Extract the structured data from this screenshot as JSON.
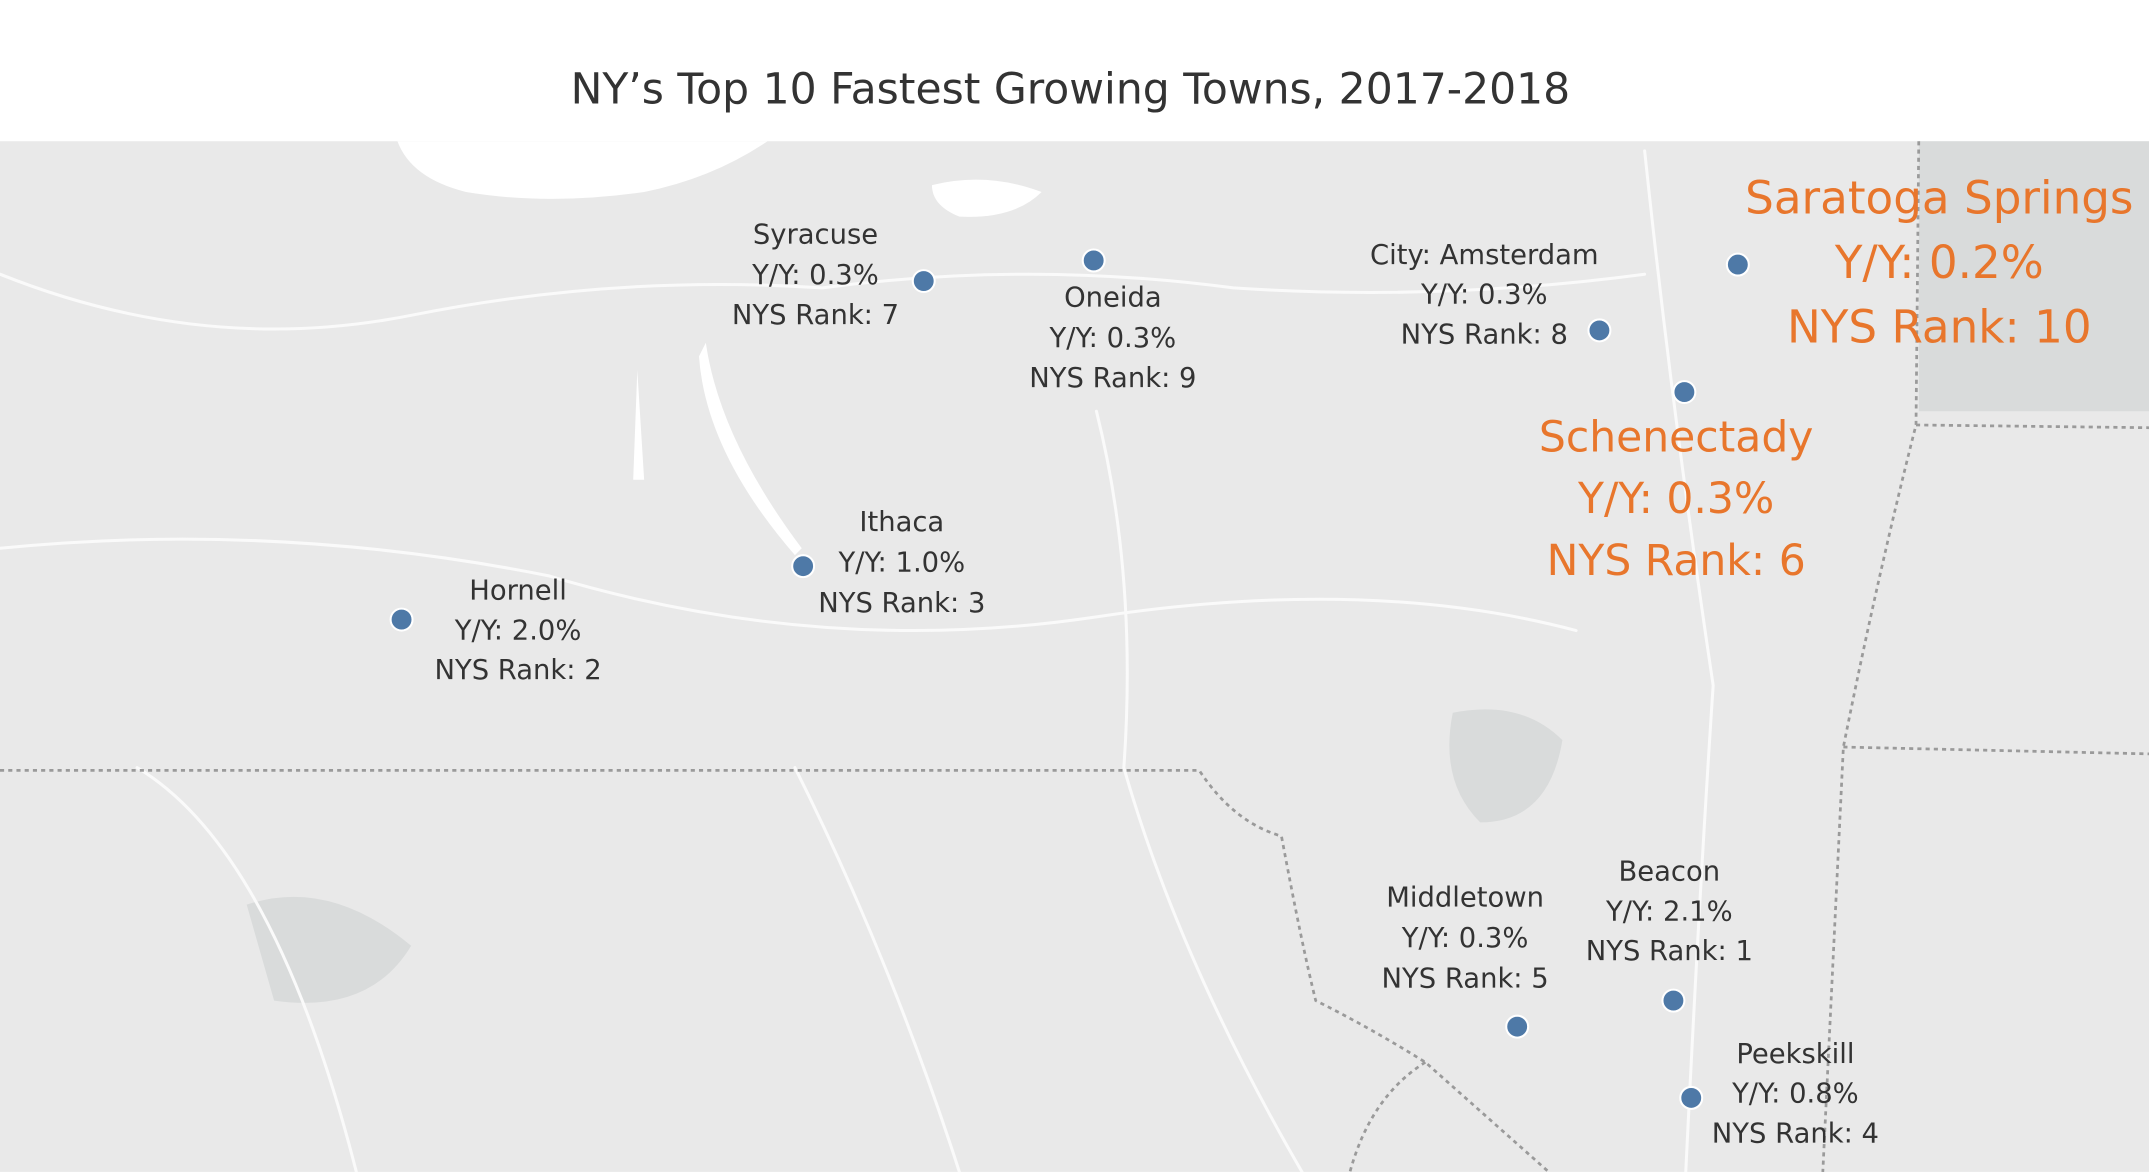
{
  "title": "NY’s Top 10 Fastest Growing Towns, 2017-2018",
  "marker_color": "#4e79a7",
  "towns": [
    {
      "name": "Syracuse",
      "growth": "Y/Y: 0.3%",
      "rank": "NYS Rank: 7",
      "label_color": "#333333"
    },
    {
      "name": "Oneida",
      "growth": "Y/Y: 0.3%",
      "rank": "NYS Rank: 9",
      "label_color": "#333333"
    },
    {
      "name": "City: Amsterdam",
      "growth": "Y/Y: 0.3%",
      "rank": "NYS Rank: 8",
      "label_color": "#333333"
    },
    {
      "name": "Saratoga Springs",
      "growth": "Y/Y: 0.2%",
      "rank": "NYS Rank: 10",
      "label_color": "#e8762c"
    },
    {
      "name": "Schenectady",
      "growth": "Y/Y: 0.3%",
      "rank": "NYS Rank: 6",
      "label_color": "#e8762c"
    },
    {
      "name": "Ithaca",
      "growth": "Y/Y: 1.0%",
      "rank": "NYS Rank: 3",
      "label_color": "#333333"
    },
    {
      "name": "Hornell",
      "growth": "Y/Y: 2.0%",
      "rank": "NYS Rank: 2",
      "label_color": "#333333"
    },
    {
      "name": "Middletown",
      "growth": "Y/Y: 0.3%",
      "rank": "NYS Rank: 5",
      "label_color": "#333333"
    },
    {
      "name": "Beacon",
      "growth": "Y/Y: 2.1%",
      "rank": "NYS Rank: 1",
      "label_color": "#333333"
    },
    {
      "name": "Peekskill",
      "growth": "Y/Y: 0.8%",
      "rank": "NYS Rank: 4",
      "label_color": "#333333"
    }
  ]
}
